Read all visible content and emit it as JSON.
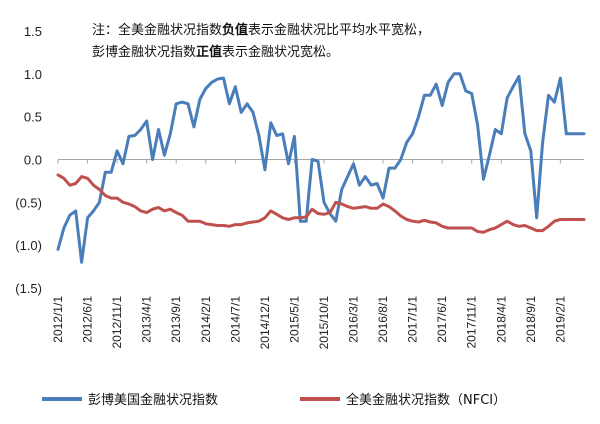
{
  "chart_data": {
    "type": "line",
    "title": "",
    "xlabel": "",
    "ylabel": "",
    "ylim": [
      -1.5,
      1.5
    ],
    "y_tick_labels": [
      "1.5",
      "1.0",
      "0.5",
      "0.0",
      "(0.5)",
      "(1.0)",
      "(1.5)"
    ],
    "x_tick_labels": [
      "2012/1/1",
      "2012/6/1",
      "2012/11/1",
      "2013/4/1",
      "2013/9/1",
      "2014/2/1",
      "2014/7/1",
      "2014/12/1",
      "2015/5/1",
      "2015/10/1",
      "2016/3/1",
      "2016/8/1",
      "2017/1/1",
      "2017/6/1",
      "2017/11/1",
      "2018/4/1",
      "2018/9/1",
      "2019/2/1"
    ],
    "x_range": [
      "2012-01",
      "2019-06"
    ],
    "annotation": {
      "line1": {
        "prefix": "注：全美金融状况指数",
        "strong": "负值",
        "suffix": "表示金融状况比平均水平宽松，"
      },
      "line2": {
        "prefix": "彭博金融状况指数",
        "strong": "正值",
        "suffix": "表示金融状况宽松。"
      }
    },
    "legend_position": "bottom",
    "series": [
      {
        "name": "彭博美国金融状况指数",
        "color": "#4a7ebb",
        "x": [
          "2012-01",
          "2012-02",
          "2012-03",
          "2012-04",
          "2012-05",
          "2012-06",
          "2012-07",
          "2012-08",
          "2012-09",
          "2012-10",
          "2012-11",
          "2012-12",
          "2013-01",
          "2013-02",
          "2013-03",
          "2013-04",
          "2013-05",
          "2013-06",
          "2013-07",
          "2013-08",
          "2013-09",
          "2013-10",
          "2013-11",
          "2013-12",
          "2014-01",
          "2014-02",
          "2014-03",
          "2014-04",
          "2014-05",
          "2014-06",
          "2014-07",
          "2014-08",
          "2014-09",
          "2014-10",
          "2014-11",
          "2014-12",
          "2015-01",
          "2015-02",
          "2015-03",
          "2015-04",
          "2015-05",
          "2015-06",
          "2015-07",
          "2015-08",
          "2015-09",
          "2015-10",
          "2015-11",
          "2015-12",
          "2016-01",
          "2016-02",
          "2016-03",
          "2016-04",
          "2016-05",
          "2016-06",
          "2016-07",
          "2016-08",
          "2016-09",
          "2016-10",
          "2016-11",
          "2016-12",
          "2017-01",
          "2017-02",
          "2017-03",
          "2017-04",
          "2017-05",
          "2017-06",
          "2017-07",
          "2017-08",
          "2017-09",
          "2017-10",
          "2017-11",
          "2017-12",
          "2018-01",
          "2018-02",
          "2018-03",
          "2018-04",
          "2018-05",
          "2018-06",
          "2018-07",
          "2018-08",
          "2018-09",
          "2018-10",
          "2018-11",
          "2018-12",
          "2019-01",
          "2019-02",
          "2019-03",
          "2019-04",
          "2019-05",
          "2019-06"
        ],
        "values": [
          -1.05,
          -0.8,
          -0.65,
          -0.6,
          -1.2,
          -0.68,
          -0.6,
          -0.5,
          -0.15,
          -0.15,
          0.1,
          -0.05,
          0.27,
          0.28,
          0.35,
          0.45,
          0.0,
          0.35,
          0.05,
          0.3,
          0.65,
          0.67,
          0.65,
          0.38,
          0.7,
          0.83,
          0.9,
          0.94,
          0.95,
          0.65,
          0.85,
          0.55,
          0.65,
          0.55,
          0.28,
          -0.12,
          0.43,
          0.28,
          0.3,
          -0.05,
          0.27,
          -0.72,
          -0.72,
          0.0,
          -0.02,
          -0.5,
          -0.63,
          -0.72,
          -0.35,
          -0.2,
          -0.05,
          -0.3,
          -0.2,
          -0.3,
          -0.28,
          -0.45,
          -0.1,
          -0.1,
          0.0,
          0.2,
          0.3,
          0.5,
          0.75,
          0.75,
          0.88,
          0.63,
          0.9,
          1.0,
          1.0,
          0.8,
          0.77,
          0.4,
          -0.23,
          0.05,
          0.35,
          0.3,
          0.72,
          0.85,
          0.97,
          0.3,
          0.1,
          -0.68,
          0.2,
          0.75,
          0.67,
          0.95,
          0.3,
          0.3,
          0.3,
          0.3
        ]
      },
      {
        "name": "全美金融状况指数（NFCI）",
        "color": "#c0504d",
        "x": [
          "2012-01",
          "2012-02",
          "2012-03",
          "2012-04",
          "2012-05",
          "2012-06",
          "2012-07",
          "2012-08",
          "2012-09",
          "2012-10",
          "2012-11",
          "2012-12",
          "2013-01",
          "2013-02",
          "2013-03",
          "2013-04",
          "2013-05",
          "2013-06",
          "2013-07",
          "2013-08",
          "2013-09",
          "2013-10",
          "2013-11",
          "2013-12",
          "2014-01",
          "2014-02",
          "2014-03",
          "2014-04",
          "2014-05",
          "2014-06",
          "2014-07",
          "2014-08",
          "2014-09",
          "2014-10",
          "2014-11",
          "2014-12",
          "2015-01",
          "2015-02",
          "2015-03",
          "2015-04",
          "2015-05",
          "2015-06",
          "2015-07",
          "2015-08",
          "2015-09",
          "2015-10",
          "2015-11",
          "2015-12",
          "2016-01",
          "2016-02",
          "2016-03",
          "2016-04",
          "2016-05",
          "2016-06",
          "2016-07",
          "2016-08",
          "2016-09",
          "2016-10",
          "2016-11",
          "2016-12",
          "2017-01",
          "2017-02",
          "2017-03",
          "2017-04",
          "2017-05",
          "2017-06",
          "2017-07",
          "2017-08",
          "2017-09",
          "2017-10",
          "2017-11",
          "2017-12",
          "2018-01",
          "2018-02",
          "2018-03",
          "2018-04",
          "2018-05",
          "2018-06",
          "2018-07",
          "2018-08",
          "2018-09",
          "2018-10",
          "2018-11",
          "2018-12",
          "2019-01",
          "2019-02",
          "2019-03",
          "2019-04",
          "2019-05",
          "2019-06"
        ],
        "values": [
          -0.18,
          -0.22,
          -0.3,
          -0.28,
          -0.2,
          -0.22,
          -0.3,
          -0.35,
          -0.42,
          -0.45,
          -0.45,
          -0.5,
          -0.52,
          -0.55,
          -0.6,
          -0.62,
          -0.58,
          -0.56,
          -0.6,
          -0.58,
          -0.62,
          -0.65,
          -0.72,
          -0.72,
          -0.72,
          -0.75,
          -0.76,
          -0.77,
          -0.77,
          -0.78,
          -0.76,
          -0.76,
          -0.74,
          -0.73,
          -0.72,
          -0.68,
          -0.6,
          -0.64,
          -0.68,
          -0.7,
          -0.68,
          -0.68,
          -0.67,
          -0.58,
          -0.63,
          -0.64,
          -0.62,
          -0.5,
          -0.52,
          -0.55,
          -0.57,
          -0.56,
          -0.55,
          -0.57,
          -0.57,
          -0.52,
          -0.55,
          -0.6,
          -0.66,
          -0.7,
          -0.72,
          -0.73,
          -0.71,
          -0.73,
          -0.74,
          -0.78,
          -0.8,
          -0.8,
          -0.8,
          -0.8,
          -0.8,
          -0.84,
          -0.85,
          -0.82,
          -0.8,
          -0.76,
          -0.72,
          -0.76,
          -0.78,
          -0.77,
          -0.8,
          -0.83,
          -0.83,
          -0.78,
          -0.72,
          -0.7,
          -0.7,
          -0.7,
          -0.7,
          -0.7
        ]
      }
    ]
  }
}
